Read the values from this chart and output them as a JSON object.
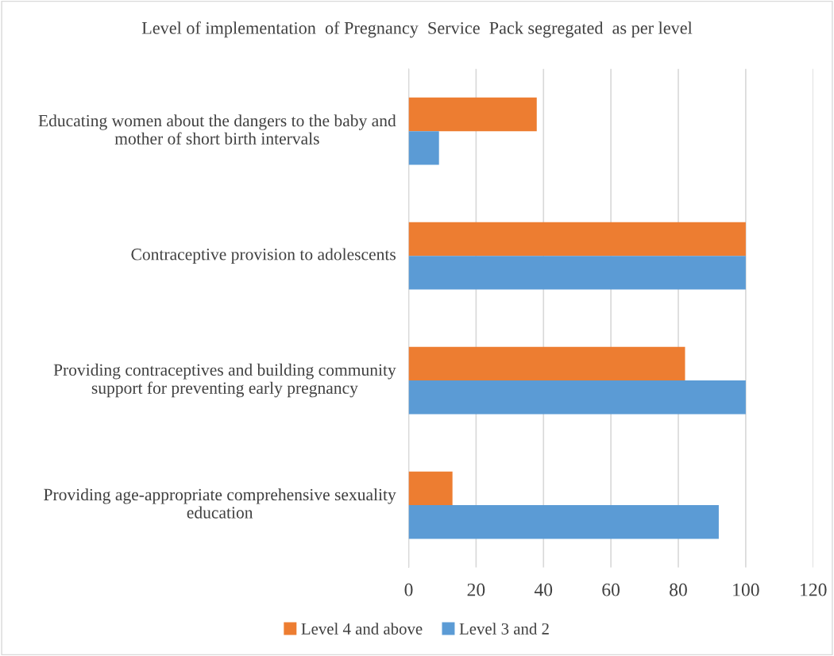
{
  "chart_data": {
    "type": "bar",
    "orientation": "horizontal",
    "title": "Level of implementation  of Pregnancy  Service  Pack segregated  as per level",
    "categories": [
      "Educating women about the dangers to the baby and mother of short birth intervals",
      "Contraceptive provision to adolescents",
      "Providing contraceptives and building community support for preventing early pregnancy",
      "Providing age-appropriate comprehensive sexuality education"
    ],
    "series": [
      {
        "name": "Level 4 and above",
        "color": "#ed7d31",
        "values": [
          38,
          100,
          82,
          13
        ]
      },
      {
        "name": "Level 3 and 2",
        "color": "#5b9bd5",
        "values": [
          9,
          100,
          100,
          92
        ]
      }
    ],
    "xlim": [
      0,
      120
    ],
    "xticks": [
      0,
      20,
      40,
      60,
      80,
      100,
      120
    ],
    "grid": "x",
    "legend": "bottom"
  }
}
